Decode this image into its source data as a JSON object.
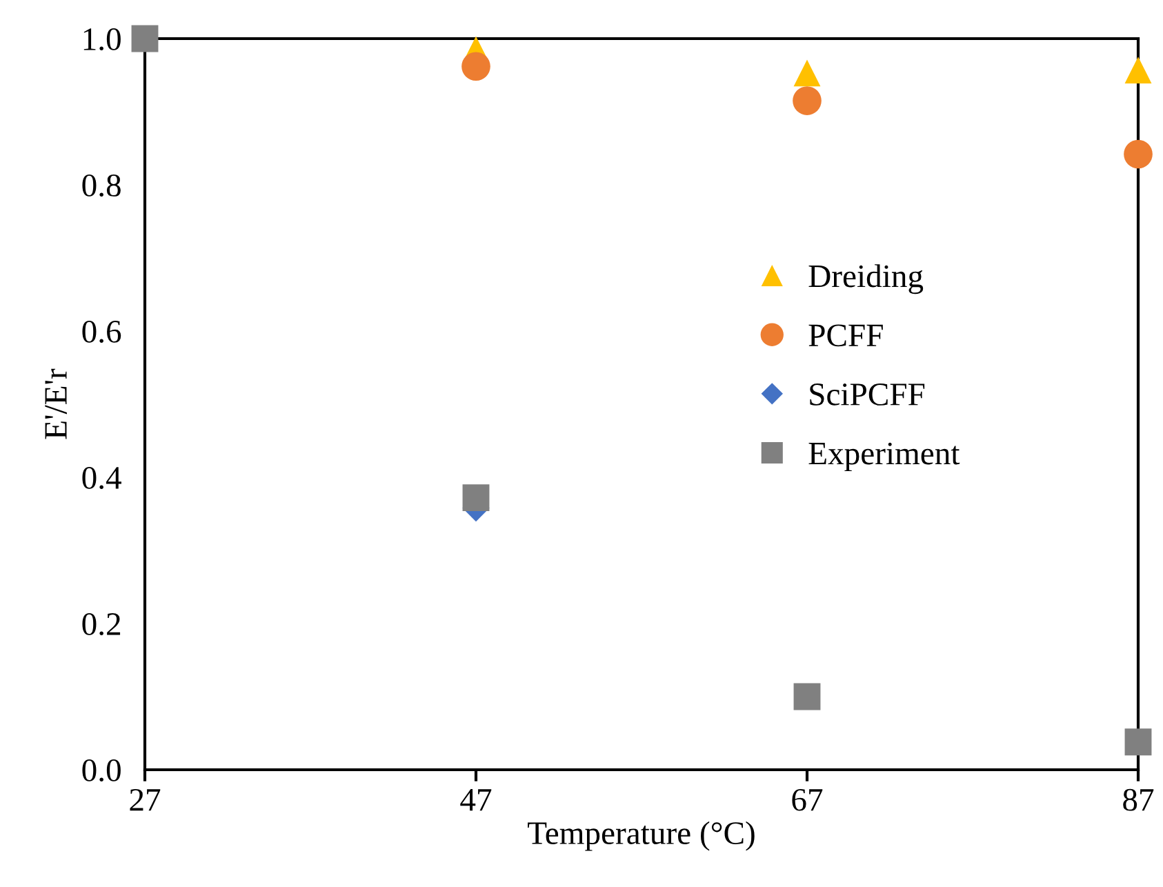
{
  "chart_data": {
    "type": "scatter",
    "xlabel": "Temperature (°C)",
    "ylabel": "E'/E'r",
    "x": [
      27,
      47,
      67,
      87
    ],
    "xlim": [
      27,
      87
    ],
    "xticks": [
      27,
      47,
      67,
      87
    ],
    "ylim": [
      0,
      1.0
    ],
    "yticks": [
      {
        "value": 0,
        "label": "0.0"
      },
      {
        "value": 0.2,
        "label": "0.2"
      },
      {
        "value": 0.4,
        "label": "0.4"
      },
      {
        "value": 0.6,
        "label": "0.6"
      },
      {
        "value": 0.8,
        "label": "0.8"
      },
      {
        "value": 1.0,
        "label": "1.0"
      }
    ],
    "grid": false,
    "legend": "right",
    "series": [
      {
        "name": "Dreiding",
        "color": "#ffc000",
        "marker": "triangle",
        "values": [
          null,
          0.985,
          0.953,
          0.957
        ]
      },
      {
        "name": "PCFF",
        "color": "#ed7d31",
        "marker": "circle",
        "values": [
          null,
          0.962,
          0.915,
          0.842
        ]
      },
      {
        "name": "SciPCFF",
        "color": "#4472c4",
        "marker": "diamond",
        "values": [
          null,
          0.358,
          null,
          null
        ]
      },
      {
        "name": "Experiment",
        "color": "#808080",
        "marker": "square",
        "values": [
          1.0,
          0.372,
          0.1,
          0.038
        ]
      }
    ]
  }
}
